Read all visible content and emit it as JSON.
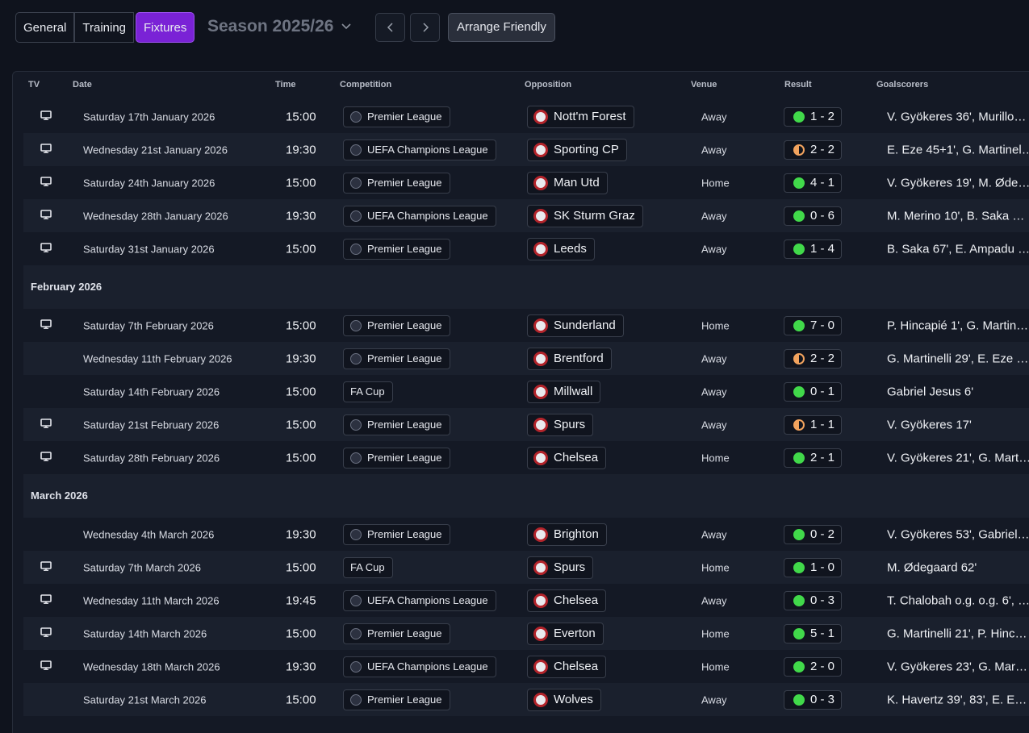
{
  "tabs": [
    "General",
    "Training",
    "Fixtures"
  ],
  "active_tab": 2,
  "season": "Season 2025/26",
  "arrange_button": "Arrange Friendly",
  "columns": [
    "TV",
    "Date",
    "Time",
    "Competition",
    "Opposition",
    "Venue",
    "Result",
    "Goalscorers"
  ],
  "groups": [
    {
      "rows": [
        {
          "tv": true,
          "date": "Saturday 17th January 2026",
          "time": "15:00",
          "competition": "Premier League",
          "badge": true,
          "opposition": "Nott'm Forest",
          "venue": "Away",
          "result": "1 - 2",
          "outcome": "win",
          "goalscorers": "V. Gyökeres 36', Murillo…"
        },
        {
          "tv": true,
          "date": "Wednesday 21st January 2026",
          "time": "19:30",
          "competition": "UEFA Champions League",
          "badge": true,
          "opposition": "Sporting CP",
          "venue": "Away",
          "result": "2 - 2",
          "outcome": "draw",
          "goalscorers": "E. Eze 45+1', G. Martinel…"
        },
        {
          "tv": true,
          "date": "Saturday 24th January 2026",
          "time": "15:00",
          "competition": "Premier League",
          "badge": true,
          "opposition": "Man Utd",
          "venue": "Home",
          "result": "4 - 1",
          "outcome": "win",
          "goalscorers": "V. Gyökeres 19', M. Øde…"
        },
        {
          "tv": true,
          "date": "Wednesday 28th January 2026",
          "time": "19:30",
          "competition": "UEFA Champions League",
          "badge": true,
          "opposition": "SK Sturm Graz",
          "venue": "Away",
          "result": "0 - 6",
          "outcome": "win",
          "goalscorers": "M. Merino 10', B. Saka …"
        },
        {
          "tv": true,
          "date": "Saturday 31st January 2026",
          "time": "15:00",
          "competition": "Premier League",
          "badge": true,
          "opposition": "Leeds",
          "venue": "Away",
          "result": "1 - 4",
          "outcome": "win",
          "goalscorers": "B. Saka 67', E. Ampadu …"
        }
      ]
    },
    {
      "heading": "February 2026",
      "rows": [
        {
          "tv": true,
          "date": "Saturday 7th February 2026",
          "time": "15:00",
          "competition": "Premier League",
          "badge": true,
          "opposition": "Sunderland",
          "venue": "Home",
          "result": "7 - 0",
          "outcome": "win",
          "goalscorers": "P. Hincapié 1', G. Martin…"
        },
        {
          "tv": false,
          "date": "Wednesday 11th February 2026",
          "time": "19:30",
          "competition": "Premier League",
          "badge": true,
          "opposition": "Brentford",
          "venue": "Away",
          "result": "2 - 2",
          "outcome": "draw",
          "goalscorers": "G. Martinelli 29', E. Eze …"
        },
        {
          "tv": false,
          "date": "Saturday 14th February 2026",
          "time": "15:00",
          "competition": "FA Cup",
          "badge": false,
          "opposition": "Millwall",
          "venue": "Away",
          "result": "0 - 1",
          "outcome": "win",
          "goalscorers": "Gabriel Jesus 6'"
        },
        {
          "tv": true,
          "date": "Saturday 21st February 2026",
          "time": "15:00",
          "competition": "Premier League",
          "badge": true,
          "opposition": "Spurs",
          "venue": "Away",
          "result": "1 - 1",
          "outcome": "draw",
          "goalscorers": "V. Gyökeres 17'"
        },
        {
          "tv": true,
          "date": "Saturday 28th February 2026",
          "time": "15:00",
          "competition": "Premier League",
          "badge": true,
          "opposition": "Chelsea",
          "venue": "Home",
          "result": "2 - 1",
          "outcome": "win",
          "goalscorers": "V. Gyökeres 21', G. Mart…"
        }
      ]
    },
    {
      "heading": "March 2026",
      "rows": [
        {
          "tv": false,
          "date": "Wednesday 4th March 2026",
          "time": "19:30",
          "competition": "Premier League",
          "badge": true,
          "opposition": "Brighton",
          "venue": "Away",
          "result": "0 - 2",
          "outcome": "win",
          "goalscorers": "V. Gyökeres 53', Gabriel…"
        },
        {
          "tv": true,
          "date": "Saturday 7th March 2026",
          "time": "15:00",
          "competition": "FA Cup",
          "badge": false,
          "opposition": "Spurs",
          "venue": "Home",
          "result": "1 - 0",
          "outcome": "win",
          "goalscorers": "M. Ødegaard 62'"
        },
        {
          "tv": true,
          "date": "Wednesday 11th March 2026",
          "time": "19:45",
          "competition": "UEFA Champions League",
          "badge": true,
          "opposition": "Chelsea",
          "venue": "Away",
          "result": "0 - 3",
          "outcome": "win",
          "goalscorers": "T. Chalobah o.g. o.g.  6', …"
        },
        {
          "tv": true,
          "date": "Saturday 14th March 2026",
          "time": "15:00",
          "competition": "Premier League",
          "badge": true,
          "opposition": "Everton",
          "venue": "Home",
          "result": "5 - 1",
          "outcome": "win",
          "goalscorers": "G. Martinelli 21', P. Hinc…"
        },
        {
          "tv": true,
          "date": "Wednesday 18th March 2026",
          "time": "19:30",
          "competition": "UEFA Champions League",
          "badge": true,
          "opposition": "Chelsea",
          "venue": "Home",
          "result": "2 - 0",
          "outcome": "win",
          "goalscorers": "V. Gyökeres 23', G. Mar…"
        },
        {
          "tv": false,
          "date": "Saturday 21st March 2026",
          "time": "15:00",
          "competition": "Premier League",
          "badge": true,
          "opposition": "Wolves",
          "venue": "Away",
          "result": "0 - 3",
          "outcome": "win",
          "goalscorers": "K. Havertz 39', 83', E. E…"
        }
      ]
    }
  ]
}
